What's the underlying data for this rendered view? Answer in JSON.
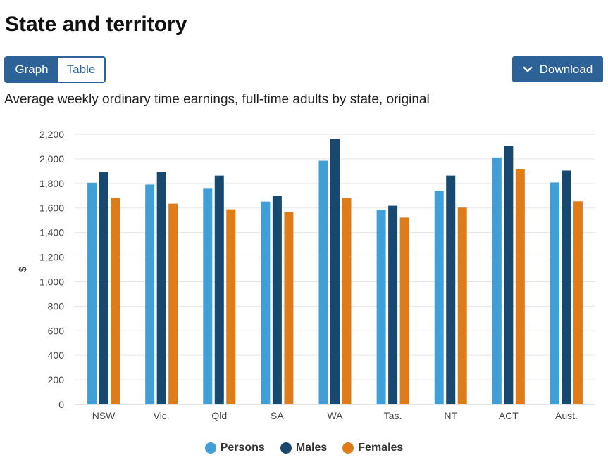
{
  "page": {
    "title": "State and territory",
    "subtitle": "Average weekly ordinary time earnings, full-time adults by state, original"
  },
  "toggle": {
    "graph_label": "Graph",
    "table_label": "Table",
    "selected": "Graph"
  },
  "download": {
    "label": "Download",
    "icon": "chevron-down-icon"
  },
  "colors": {
    "accent": "#2d6298",
    "persons": "#3f9fd6",
    "males": "#17486f",
    "females": "#de7c19",
    "grid": "#e6e6e6"
  },
  "chart_data": {
    "type": "bar",
    "title": "",
    "xlabel": "",
    "ylabel": "$",
    "ylim": [
      0,
      2200
    ],
    "yticks": [
      0,
      200,
      400,
      600,
      800,
      1000,
      1200,
      1400,
      1600,
      1800,
      2000,
      2200
    ],
    "ytick_labels": [
      "0",
      "200",
      "400",
      "600",
      "800",
      "1,000",
      "1,200",
      "1,400",
      "1,600",
      "1,800",
      "2,000",
      "2,200"
    ],
    "grid": true,
    "legend_position": "bottom-center",
    "categories": [
      "NSW",
      "Vic.",
      "Qld",
      "SA",
      "WA",
      "Tas.",
      "NT",
      "ACT",
      "Aust."
    ],
    "series": [
      {
        "name": "Persons",
        "color": "#3f9fd6",
        "values": [
          1806,
          1791,
          1757,
          1652,
          1985,
          1584,
          1738,
          2012,
          1808
        ]
      },
      {
        "name": "Males",
        "color": "#17486f",
        "values": [
          1893,
          1893,
          1864,
          1701,
          2161,
          1618,
          1864,
          2108,
          1905
        ]
      },
      {
        "name": "Females",
        "color": "#de7c19",
        "values": [
          1682,
          1635,
          1589,
          1570,
          1681,
          1522,
          1603,
          1914,
          1654
        ]
      }
    ]
  }
}
